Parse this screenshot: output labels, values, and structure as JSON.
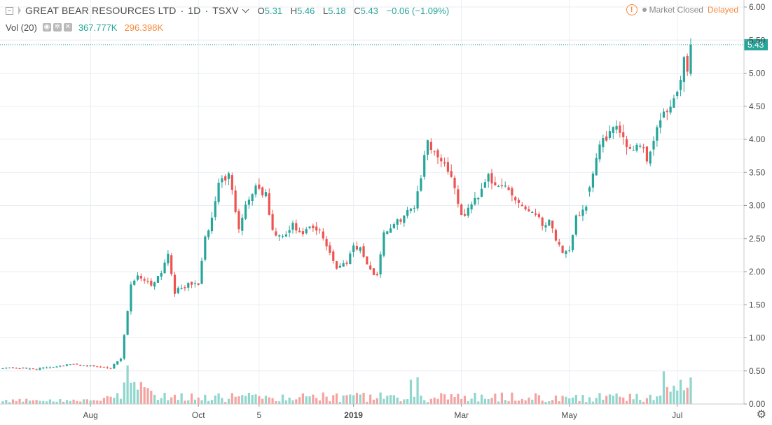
{
  "header": {
    "symbol_title": "GREAT BEAR RESOURCES LTD",
    "interval": "1D",
    "exchange": "TSXV",
    "ohlc": {
      "o_label": "O",
      "o": "5.31",
      "h_label": "H",
      "h": "5.46",
      "l_label": "L",
      "l": "5.18",
      "c_label": "C",
      "c": "5.43",
      "change": "−0.06 (−1.09%)"
    },
    "volume_label": "Vol (20)",
    "volume_value": "367.777K",
    "volume_ma": "296.398K",
    "market_status": "Market Closed",
    "delay_status": "Delayed"
  },
  "colors": {
    "up": "#26a69a",
    "down": "#ef5350",
    "vol_up": "#8fd6cd",
    "vol_down": "#f5a3a1",
    "grid": "#e9eef3",
    "axis_text": "#4a4a4a",
    "warn": "#f68b3c"
  },
  "chart_data": {
    "type": "candlestick",
    "y_axis": {
      "min": 0,
      "max": 6,
      "ticks": [
        "0.00",
        "0.50",
        "1.00",
        "1.50",
        "2.00",
        "2.50",
        "3.00",
        "3.50",
        "4.00",
        "4.50",
        "5.00",
        "5.50",
        "6.00"
      ],
      "position": "right"
    },
    "x_axis": {
      "ticks": [
        {
          "label": "Aug",
          "i": 26
        },
        {
          "label": "Oct",
          "i": 58
        },
        {
          "label": "5",
          "i": 76
        },
        {
          "label": "2019",
          "i": 104
        },
        {
          "label": "Mar",
          "i": 136
        },
        {
          "label": "May",
          "i": 168
        },
        {
          "label": "Jul",
          "i": 200
        }
      ]
    },
    "last_price": 5.43,
    "last_price_label": "5.43",
    "close_anchors": [
      [
        0,
        0.55
      ],
      [
        10,
        0.53
      ],
      [
        20,
        0.6
      ],
      [
        32,
        0.55
      ],
      [
        35,
        0.68
      ],
      [
        37,
        1.4
      ],
      [
        38,
        1.8
      ],
      [
        40,
        1.95
      ],
      [
        44,
        1.8
      ],
      [
        47,
        2.0
      ],
      [
        49,
        2.28
      ],
      [
        51,
        1.7
      ],
      [
        55,
        1.8
      ],
      [
        58,
        1.82
      ],
      [
        60,
        2.5
      ],
      [
        62,
        2.8
      ],
      [
        64,
        3.35
      ],
      [
        67,
        3.45
      ],
      [
        70,
        2.7
      ],
      [
        72,
        3.0
      ],
      [
        75,
        3.3
      ],
      [
        78,
        3.15
      ],
      [
        80,
        2.6
      ],
      [
        83,
        2.5
      ],
      [
        86,
        2.7
      ],
      [
        88,
        2.55
      ],
      [
        91,
        2.65
      ],
      [
        94,
        2.6
      ],
      [
        97,
        2.3
      ],
      [
        99,
        2.05
      ],
      [
        102,
        2.15
      ],
      [
        104,
        2.4
      ],
      [
        106,
        2.35
      ],
      [
        109,
        2.0
      ],
      [
        111,
        1.95
      ],
      [
        113,
        2.6
      ],
      [
        116,
        2.7
      ],
      [
        119,
        2.85
      ],
      [
        122,
        3.0
      ],
      [
        124,
        3.45
      ],
      [
        126,
        4.0
      ],
      [
        128,
        3.8
      ],
      [
        131,
        3.65
      ],
      [
        134,
        3.3
      ],
      [
        136,
        2.8
      ],
      [
        138,
        2.95
      ],
      [
        141,
        3.15
      ],
      [
        144,
        3.5
      ],
      [
        146,
        3.25
      ],
      [
        149,
        3.3
      ],
      [
        152,
        3.1
      ],
      [
        155,
        2.95
      ],
      [
        158,
        2.9
      ],
      [
        160,
        2.7
      ],
      [
        162,
        2.8
      ],
      [
        164,
        2.5
      ],
      [
        166,
        2.25
      ],
      [
        168,
        2.3
      ],
      [
        170,
        2.85
      ],
      [
        172,
        2.9
      ],
      [
        173,
        2.95
      ],
      [
        175,
        3.5
      ],
      [
        177,
        3.9
      ],
      [
        180,
        4.1
      ],
      [
        183,
        4.15
      ],
      [
        186,
        3.85
      ],
      [
        189,
        3.95
      ],
      [
        191,
        3.7
      ],
      [
        193,
        4.0
      ],
      [
        195,
        4.3
      ],
      [
        197,
        4.4
      ],
      [
        199,
        4.6
      ],
      [
        200,
        4.65
      ],
      [
        201,
        4.9
      ],
      [
        202,
        5.25
      ],
      [
        203,
        5.1
      ],
      [
        204,
        5.43
      ]
    ],
    "gap_days": [
      174
    ],
    "candle_count": 205,
    "volume_max": 0.5
  }
}
